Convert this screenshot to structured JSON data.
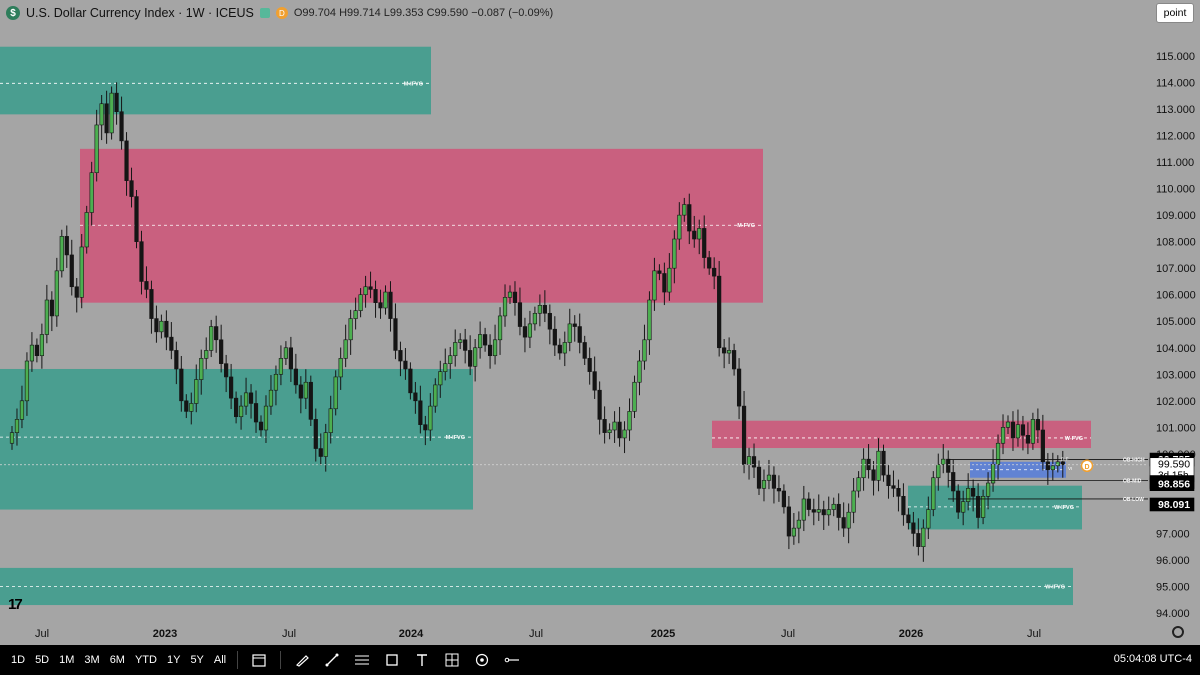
{
  "header": {
    "logo_letter": "$",
    "title": "U.S. Dollar Currency Index · 1W · ICEUS",
    "badge_letter": "D",
    "ohlc": "O99.704 H99.714 L99.353 C99.590 −0.087 (−0.09%)"
  },
  "point_button": "point",
  "toolbar": {
    "timeframes": [
      "1D",
      "5D",
      "1M",
      "3M",
      "6M",
      "YTD",
      "1Y",
      "5Y",
      "All"
    ],
    "tools": [
      "calendar-range-icon",
      "brush-icon",
      "trendline-icon",
      "fib-icon",
      "rectangle-icon",
      "text-icon",
      "measure-icon",
      "eye-icon",
      "minus-line-icon"
    ]
  },
  "clock": "05:04:08 UTC-4",
  "colors": {
    "bull": "#4caf50",
    "bear": "#151515",
    "green_zone": "#4a9e90",
    "red_zone": "#c9607f",
    "blue_zone": "#5a7fd8",
    "bg": "#a5a5a5"
  },
  "chart_data": {
    "type": "candlestick",
    "ylim": [
      93.6,
      116.0
    ],
    "price_ticks": [
      "94.000",
      "95.000",
      "96.000",
      "97.000",
      "98.000",
      "99.000",
      "100.000",
      "101.000",
      "102.000",
      "103.000",
      "104.000",
      "105.000",
      "106.000",
      "107.000",
      "108.000",
      "109.000",
      "110.000",
      "111.000",
      "112.000",
      "113.000",
      "114.000",
      "115.000"
    ],
    "time_ticks": [
      "Jul",
      "2023",
      "Jul",
      "2024",
      "Jul",
      "2025",
      "Jul",
      "2026",
      "Jul"
    ],
    "price_labels": [
      {
        "price": 99.785,
        "text": "99.785"
      },
      {
        "price": 99.59,
        "text": "99.590",
        "sub": "3d 15h"
      },
      {
        "price": 98.938,
        "text": "98.938"
      },
      {
        "price": 98.856,
        "text": "98.856"
      },
      {
        "price": 98.091,
        "text": "98.091"
      }
    ],
    "zones": [
      {
        "label": "M-IFVG",
        "color": "green",
        "top": 115.35,
        "bottom": 112.8,
        "mid": 113.97
      },
      {
        "label": "M-FVG",
        "color": "red",
        "top": 111.5,
        "bottom": 105.7,
        "mid": 108.62
      },
      {
        "label": "M-IFVG",
        "color": "green",
        "top": 103.2,
        "bottom": 97.9,
        "mid": 100.63
      },
      {
        "label": "W-FVG",
        "color": "red",
        "top": 101.25,
        "bottom": 100.22,
        "mid": 100.6
      },
      {
        "label": "W-IFVG",
        "color": "green",
        "top": 98.8,
        "bottom": 97.15,
        "mid": 98.0
      },
      {
        "label": "W-IFVG",
        "color": "green",
        "top": 95.7,
        "bottom": 94.3,
        "mid": 95.0
      },
      {
        "label": "",
        "color": "blue",
        "top": 99.7,
        "bottom": 99.1,
        "mid": 99.4
      }
    ],
    "ob_labels": [
      {
        "text": "OB-HIGH",
        "price": 99.785
      },
      {
        "text": "OB-MID",
        "price": 99.0
      },
      {
        "text": "OB-LOW",
        "price": 98.3
      }
    ],
    "small_labels": [
      "D-F",
      "VI"
    ],
    "closes": [
      100.8,
      101.3,
      102.0,
      103.5,
      104.1,
      103.7,
      104.5,
      105.8,
      105.2,
      106.9,
      108.2,
      107.5,
      106.3,
      105.9,
      107.8,
      109.1,
      110.6,
      112.4,
      113.2,
      112.1,
      113.6,
      112.9,
      111.8,
      110.3,
      109.7,
      108.0,
      106.5,
      106.2,
      105.1,
      104.6,
      105.0,
      104.4,
      103.9,
      103.2,
      102.0,
      101.6,
      101.9,
      102.8,
      103.6,
      103.9,
      104.8,
      104.3,
      103.4,
      102.9,
      102.1,
      101.4,
      101.8,
      102.3,
      101.9,
      101.2,
      100.9,
      101.8,
      102.4,
      103.0,
      103.6,
      104.0,
      103.2,
      102.6,
      102.1,
      102.7,
      101.3,
      100.2,
      99.9,
      100.8,
      101.7,
      102.9,
      103.6,
      104.3,
      105.1,
      105.4,
      106.0,
      106.3,
      106.2,
      105.7,
      105.5,
      106.1,
      105.1,
      103.9,
      103.5,
      103.2,
      102.3,
      102.0,
      101.1,
      100.9,
      101.8,
      102.6,
      103.1,
      103.4,
      103.7,
      104.2,
      104.3,
      103.9,
      103.3,
      104.0,
      104.5,
      104.1,
      103.7,
      104.3,
      105.2,
      105.9,
      106.1,
      105.7,
      104.8,
      104.4,
      104.9,
      105.3,
      105.6,
      105.3,
      104.7,
      104.1,
      103.8,
      104.2,
      104.9,
      104.8,
      104.2,
      103.6,
      103.1,
      102.4,
      101.3,
      100.8,
      100.9,
      101.2,
      100.6,
      100.9,
      101.6,
      102.7,
      103.5,
      104.3,
      105.8,
      106.9,
      106.8,
      106.1,
      107.0,
      108.1,
      109.0,
      109.4,
      108.4,
      108.1,
      108.5,
      107.4,
      107.0,
      106.7,
      104.0,
      103.8,
      103.9,
      103.2,
      101.8,
      99.6,
      99.9,
      99.5,
      98.7,
      99.0,
      99.2,
      98.7,
      98.6,
      98.0,
      96.9,
      97.2,
      97.5,
      98.3,
      97.9,
      97.8,
      97.9,
      97.7,
      97.9,
      98.1,
      97.6,
      97.2,
      97.8,
      98.6,
      99.1,
      99.8,
      99.4,
      99.0,
      100.1,
      99.2,
      98.8,
      98.7,
      98.4,
      97.7,
      97.4,
      97.0,
      96.5,
      97.2,
      97.9,
      99.1,
      99.6,
      99.8,
      99.3,
      98.6,
      97.8,
      98.2,
      98.7,
      98.4,
      97.6,
      98.4,
      98.9,
      99.6,
      100.4,
      101.0,
      101.2,
      100.6,
      101.1,
      100.7,
      100.4,
      101.3,
      100.9,
      99.7,
      99.4,
      99.55,
      99.7,
      99.59
    ]
  }
}
